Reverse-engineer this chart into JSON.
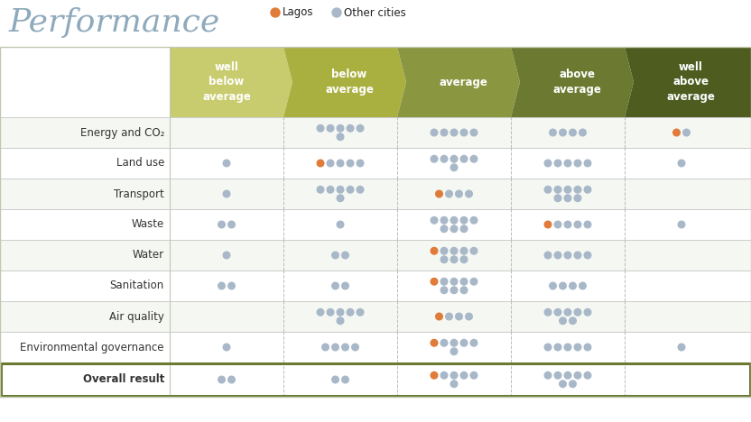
{
  "title": "Performance",
  "title_color": "#8faabc",
  "legend_lagos_color": "#e07b39",
  "legend_other_color": "#a8b8c8",
  "header_colors": [
    "#c8cc6e",
    "#aab040",
    "#8a9640",
    "#6b7a30",
    "#4e5c20"
  ],
  "header_labels": [
    "well\nbelow\naverage",
    "below\naverage",
    "average",
    "above\naverage",
    "well\nabove\naverage"
  ],
  "row_labels": [
    "Energy and CO₂",
    "Land use",
    "Transport",
    "Waste",
    "Water",
    "Sanitation",
    "Air quality",
    "Environmental governance"
  ],
  "overall_label": "Overall result",
  "categories": [
    "well_below",
    "below",
    "average",
    "above",
    "well_above"
  ],
  "rows": {
    "Energy and CO2": {
      "well_below": {
        "grey": 0,
        "orange": 0
      },
      "below": {
        "grey": 6,
        "orange": 0
      },
      "average": {
        "grey": 5,
        "orange": 0
      },
      "above": {
        "grey": 4,
        "orange": 0
      },
      "well_above": {
        "grey": 1,
        "orange": 1
      }
    },
    "Land use": {
      "well_below": {
        "grey": 1,
        "orange": 0
      },
      "below": {
        "grey": 4,
        "orange": 1
      },
      "average": {
        "grey": 6,
        "orange": 0
      },
      "above": {
        "grey": 5,
        "orange": 0
      },
      "well_above": {
        "grey": 1,
        "orange": 0
      }
    },
    "Transport": {
      "well_below": {
        "grey": 1,
        "orange": 0
      },
      "below": {
        "grey": 6,
        "orange": 0
      },
      "average": {
        "grey": 3,
        "orange": 1
      },
      "above": {
        "grey": 8,
        "orange": 0
      },
      "well_above": {
        "grey": 0,
        "orange": 0
      }
    },
    "Waste": {
      "well_below": {
        "grey": 2,
        "orange": 0
      },
      "below": {
        "grey": 1,
        "orange": 0
      },
      "average": {
        "grey": 8,
        "orange": 0
      },
      "above": {
        "grey": 4,
        "orange": 1
      },
      "well_above": {
        "grey": 1,
        "orange": 0
      }
    },
    "Water": {
      "well_below": {
        "grey": 1,
        "orange": 0
      },
      "below": {
        "grey": 2,
        "orange": 0
      },
      "average": {
        "grey": 7,
        "orange": 1
      },
      "above": {
        "grey": 5,
        "orange": 0
      },
      "well_above": {
        "grey": 0,
        "orange": 0
      }
    },
    "Sanitation": {
      "well_below": {
        "grey": 2,
        "orange": 0
      },
      "below": {
        "grey": 2,
        "orange": 0
      },
      "average": {
        "grey": 7,
        "orange": 1
      },
      "above": {
        "grey": 4,
        "orange": 0
      },
      "well_above": {
        "grey": 0,
        "orange": 0
      }
    },
    "Air quality": {
      "well_below": {
        "grey": 0,
        "orange": 0
      },
      "below": {
        "grey": 6,
        "orange": 0
      },
      "average": {
        "grey": 3,
        "orange": 1
      },
      "above": {
        "grey": 7,
        "orange": 0
      },
      "well_above": {
        "grey": 0,
        "orange": 0
      }
    },
    "Environmental governance": {
      "well_below": {
        "grey": 1,
        "orange": 0
      },
      "below": {
        "grey": 4,
        "orange": 0
      },
      "average": {
        "grey": 5,
        "orange": 1
      },
      "above": {
        "grey": 5,
        "orange": 0
      },
      "well_above": {
        "grey": 1,
        "orange": 0
      }
    }
  },
  "overall": {
    "well_below": {
      "grey": 2,
      "orange": 0
    },
    "below": {
      "grey": 2,
      "orange": 0
    },
    "average": {
      "grey": 5,
      "orange": 1
    },
    "above": {
      "grey": 7,
      "orange": 0
    },
    "well_above": {
      "grey": 0,
      "orange": 0
    }
  },
  "bg_color": "#ffffff",
  "border_color": "#c0c8b0",
  "overall_border": "#6b7a30",
  "fig_w": 8.32,
  "fig_h": 4.68,
  "dpi": 100
}
